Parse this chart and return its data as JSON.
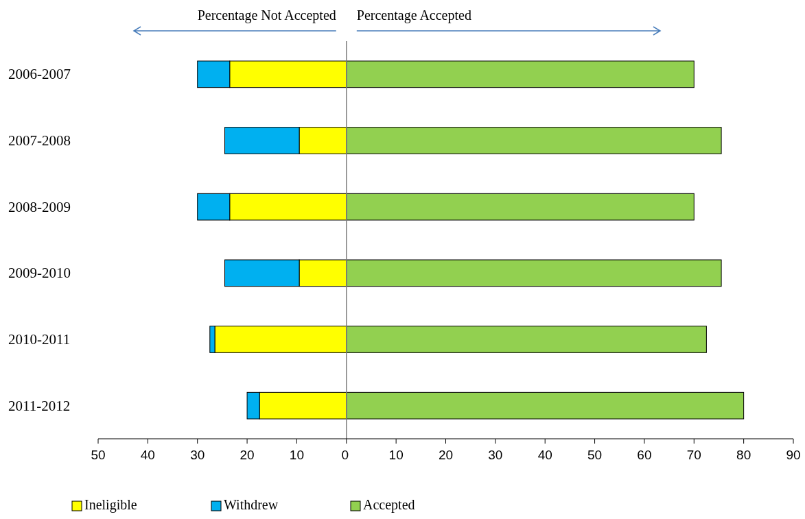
{
  "chart_data": {
    "type": "bar",
    "orientation": "horizontal",
    "stacked": true,
    "categories": [
      "2006-2007",
      "2007-2008",
      "2008-2009",
      "2009-2010",
      "2010-2011",
      "2011-2012"
    ],
    "series": [
      {
        "name": "Ineligible",
        "color": "#ffff00",
        "values": [
          -23.5,
          -9.5,
          -23.5,
          -9.5,
          -26.5,
          -17.5
        ]
      },
      {
        "name": "Withdrew",
        "color": "#00b0f0",
        "values": [
          -6.5,
          -15,
          -6.5,
          -15,
          -1,
          -2.5
        ]
      },
      {
        "name": "Accepted",
        "color": "#92d050",
        "values": [
          70,
          75.5,
          70,
          75.5,
          72.5,
          80
        ]
      }
    ],
    "xlim": [
      -50,
      90
    ],
    "xticks": [
      {
        "value": -50,
        "label": "50"
      },
      {
        "value": -40,
        "label": "40"
      },
      {
        "value": -30,
        "label": "30"
      },
      {
        "value": -20,
        "label": "20"
      },
      {
        "value": -10,
        "label": "10"
      },
      {
        "value": 0,
        "label": "0"
      },
      10,
      20,
      30,
      40,
      50,
      60,
      70,
      80,
      90
    ],
    "annotations": [
      "Percentage Not Accepted",
      "Percentage Accepted"
    ],
    "ref_lines": [
      {
        "axis": "x",
        "value": 0,
        "color": "#808080"
      }
    ],
    "legend": "bottom"
  }
}
